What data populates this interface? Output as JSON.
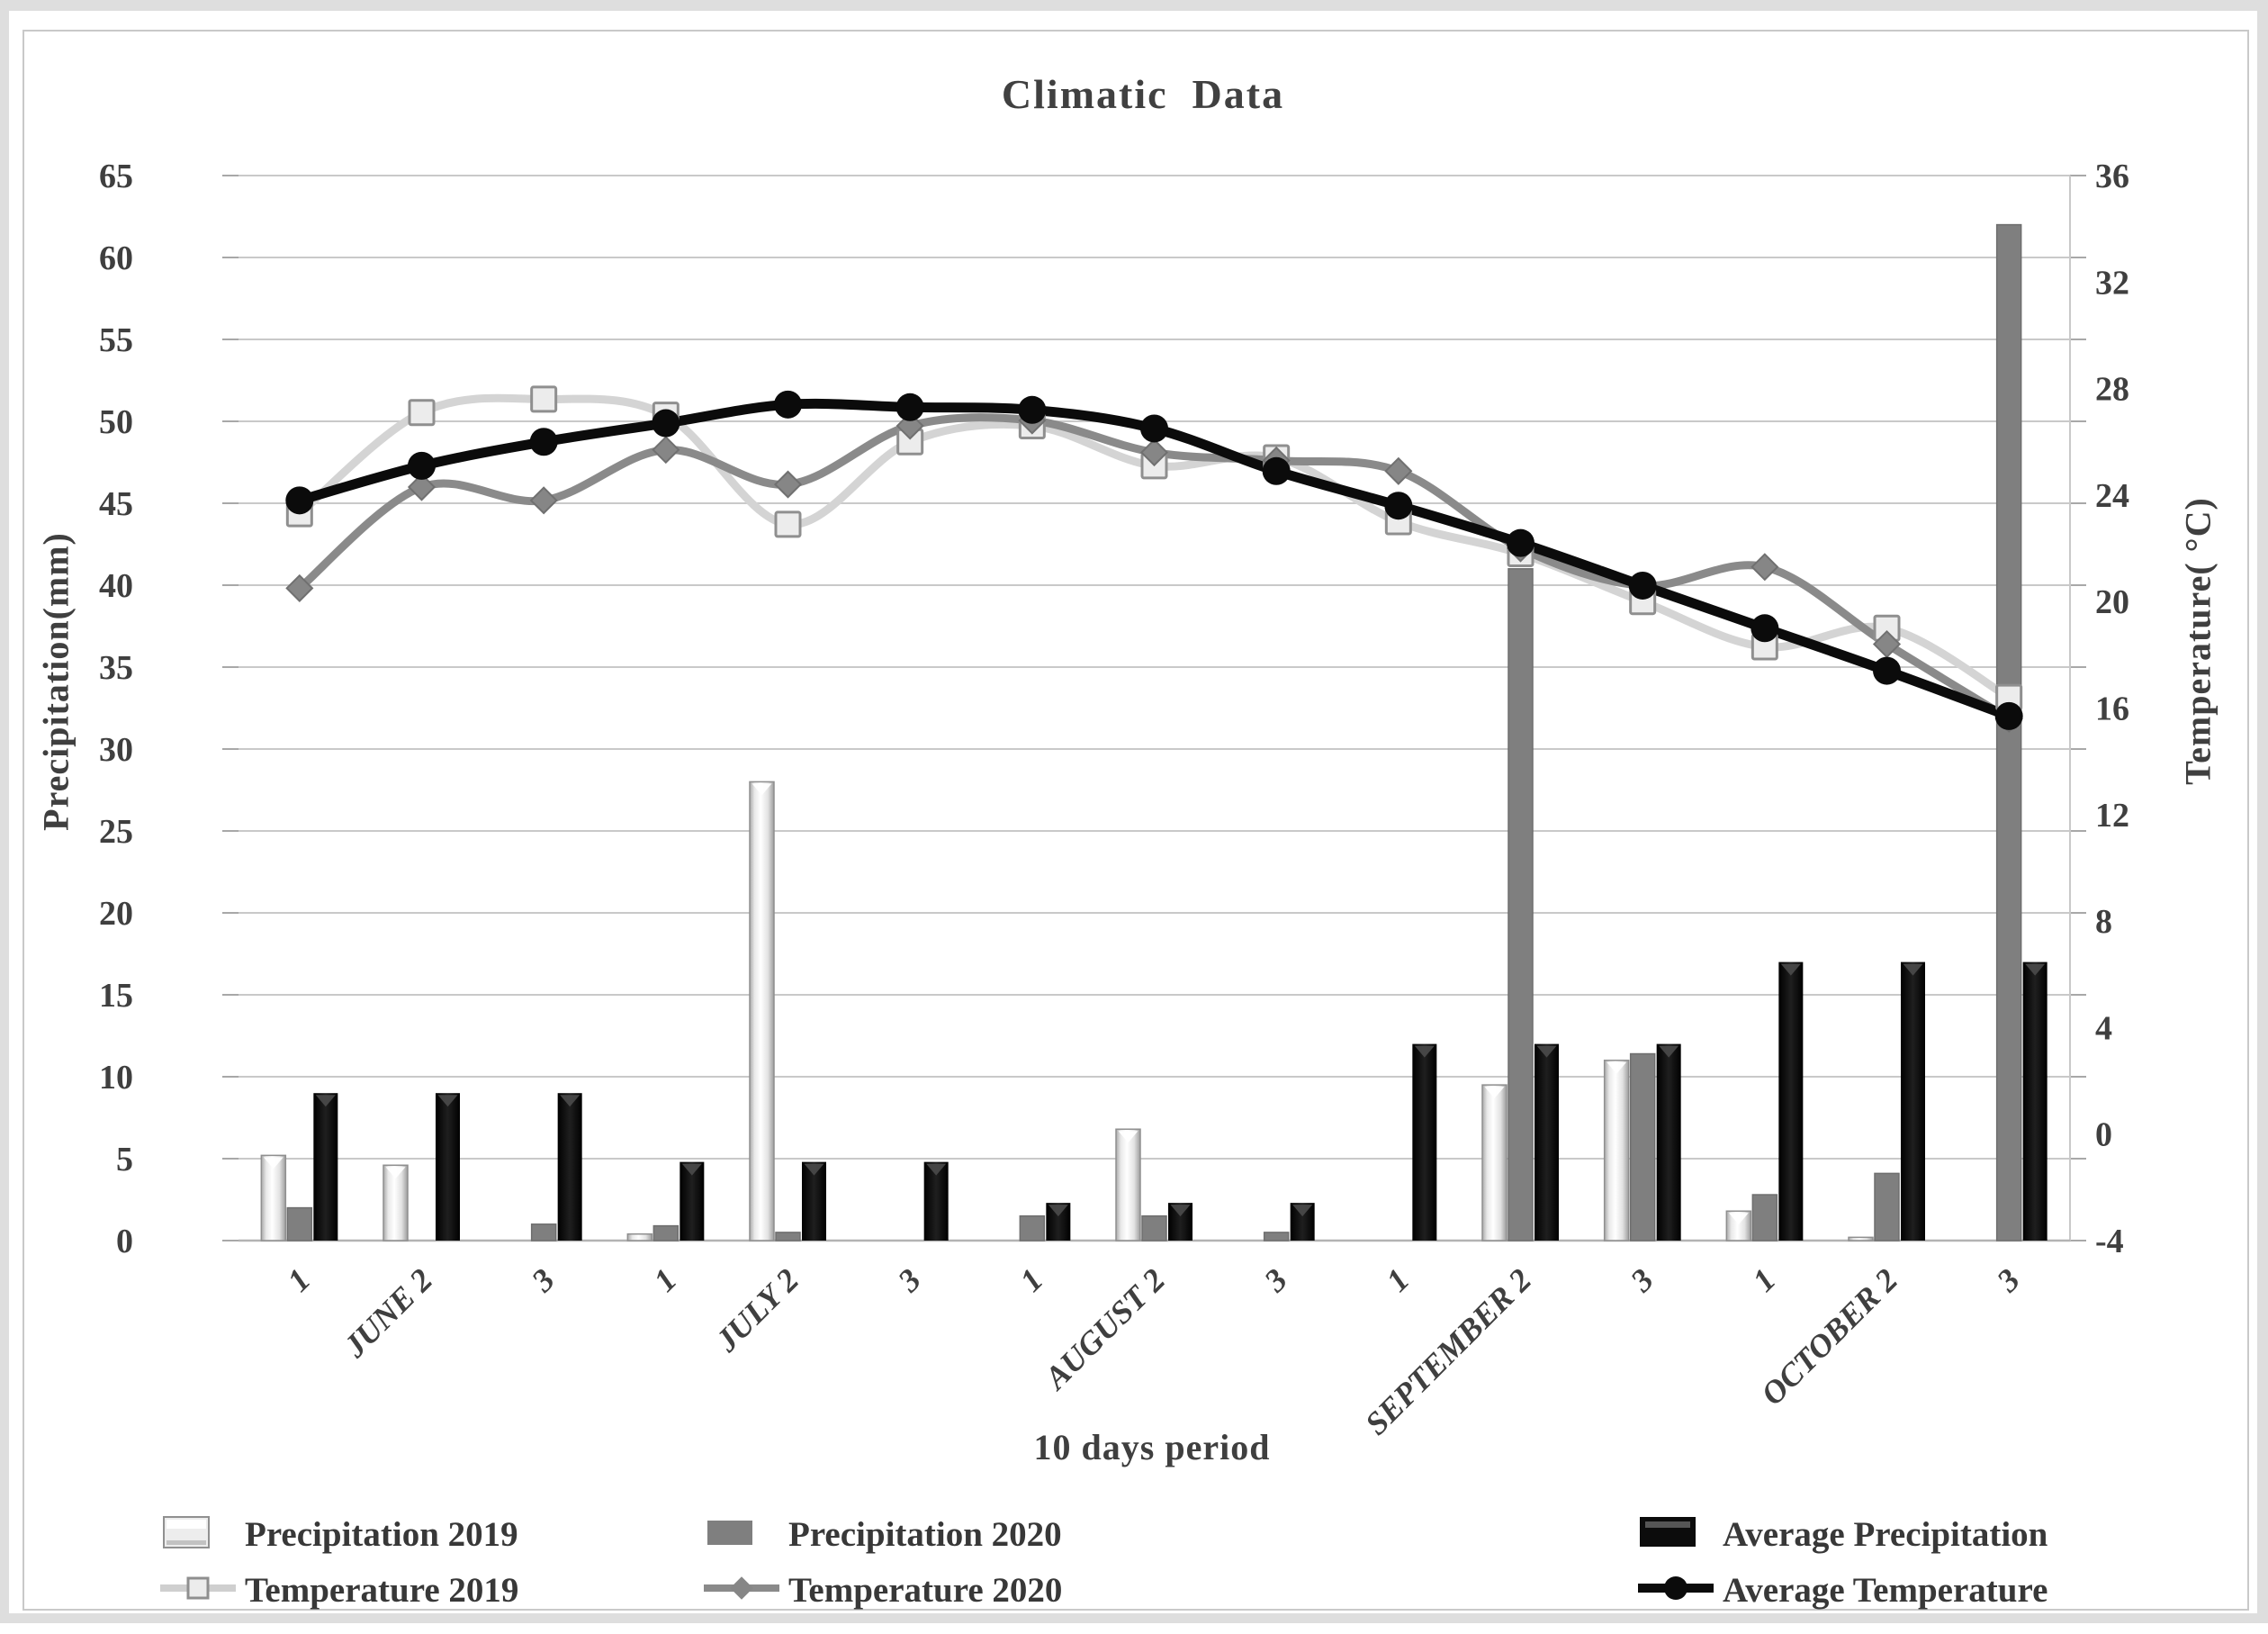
{
  "title": "Climatic  Data",
  "axes": {
    "left_label": "Precipitation(mm)",
    "right_label": "Temperature( °C)",
    "x_label": "10 days period",
    "left_ticks": [
      65,
      60,
      55,
      50,
      45,
      40,
      35,
      30,
      25,
      20,
      15,
      10,
      5,
      0
    ],
    "right_ticks": [
      36,
      32,
      28,
      24,
      20,
      16,
      12,
      8,
      4,
      0,
      -4
    ]
  },
  "x_tick_labels": [
    "1",
    "JUNE 2",
    "3",
    "1",
    "JULY 2",
    "3",
    "1",
    "AUGUST 2",
    "3",
    "1",
    "SEPTEMBER 2",
    "3",
    "1",
    "OCTOBER 2",
    "3"
  ],
  "chart_data": [
    {
      "type": "bar",
      "axis": "left",
      "ylabel": "Precipitation(mm)",
      "ylim": [
        0,
        65
      ],
      "grid": true,
      "categories": [
        "JUNE 1",
        "JUNE 2",
        "JUNE 3",
        "JULY 1",
        "JULY 2",
        "JULY 3",
        "AUGUST 1",
        "AUGUST 2",
        "AUGUST 3",
        "SEPTEMBER 1",
        "SEPTEMBER 2",
        "SEPTEMBER 3",
        "OCTOBER 1",
        "OCTOBER 2",
        "OCTOBER 3"
      ],
      "series": [
        {
          "name": "Precipitation 2019",
          "values": [
            5.2,
            4.6,
            0,
            0.4,
            28,
            0,
            0,
            6.8,
            0,
            0,
            9.5,
            11,
            1.8,
            0.2,
            0
          ]
        },
        {
          "name": "Precipitation 2020",
          "values": [
            2.0,
            0,
            1.0,
            0.9,
            0.5,
            0,
            1.5,
            1.5,
            0.5,
            0,
            41,
            11.4,
            2.8,
            4.1,
            62
          ]
        },
        {
          "name": "Average Precipitation",
          "values": [
            9,
            9,
            9,
            4.8,
            4.8,
            4.8,
            2.3,
            2.3,
            2.3,
            12,
            12,
            12,
            17,
            17,
            17
          ]
        }
      ]
    },
    {
      "type": "line",
      "axis": "right",
      "ylabel": "Temperature( °C)",
      "ylim": [
        -4,
        36
      ],
      "legend_position": "bottom",
      "categories": [
        "JUNE 1",
        "JUNE 2",
        "JUNE 3",
        "JULY 1",
        "JULY 2",
        "JULY 3",
        "AUGUST 1",
        "AUGUST 2",
        "AUGUST 3",
        "SEPTEMBER 1",
        "SEPTEMBER 2",
        "SEPTEMBER 3",
        "OCTOBER 1",
        "OCTOBER 2",
        "OCTOBER 3"
      ],
      "series": [
        {
          "name": "Temperature 2019",
          "values": [
            23.3,
            27.1,
            27.6,
            27.0,
            22.9,
            26.0,
            26.6,
            25.1,
            25.4,
            23.0,
            21.8,
            20.0,
            18.3,
            19.0,
            16.4
          ]
        },
        {
          "name": "Temperature 2020",
          "values": [
            20.5,
            24.3,
            23.8,
            25.7,
            24.4,
            26.6,
            26.8,
            25.6,
            25.3,
            24.9,
            22.0,
            20.6,
            21.3,
            18.4,
            15.6
          ]
        },
        {
          "name": "Average Temperature",
          "values": [
            23.8,
            25.1,
            26.0,
            26.7,
            27.4,
            27.3,
            27.2,
            26.5,
            24.9,
            23.6,
            22.2,
            20.6,
            19.0,
            17.4,
            15.7
          ]
        }
      ]
    }
  ],
  "legend": {
    "items": [
      {
        "label": "Precipitation 2019",
        "swatch": "bar-light"
      },
      {
        "label": "Precipitation 2020",
        "swatch": "bar-gray"
      },
      {
        "label": "Average Precipitation",
        "swatch": "bar-black"
      },
      {
        "label": "Temperature 2019",
        "swatch": "line-square"
      },
      {
        "label": "Temperature 2020",
        "swatch": "line-diamond"
      },
      {
        "label": "Average Temperature",
        "swatch": "line-circle"
      }
    ]
  },
  "colors": {
    "bar_2019": "#ededed",
    "bar_2020": "#7f7f7f",
    "bar_avg": "#0c0c0c",
    "line_2019": "#d4d4d4",
    "line_2020": "#8a8a8a",
    "line_avg": "#0b0b0b",
    "text": "#3f3f3f",
    "grid": "#c9c9c9"
  }
}
